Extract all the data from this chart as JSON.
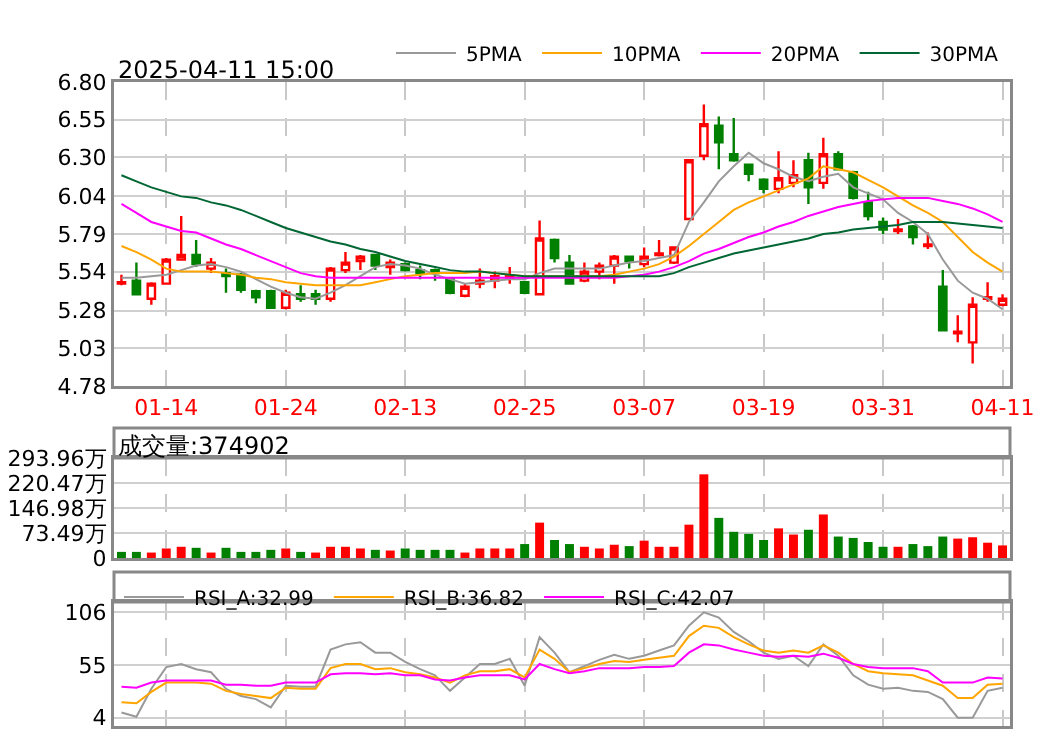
{
  "chart_data": [
    {
      "type": "candlestick",
      "title": "2025-04-11 15:00",
      "categories": [
        null,
        null,
        null,
        "01-14",
        null,
        null,
        null,
        null,
        null,
        null,
        null,
        "01-24",
        null,
        null,
        null,
        null,
        null,
        null,
        null,
        "02-13",
        null,
        null,
        null,
        null,
        null,
        null,
        null,
        "02-25",
        null,
        null,
        null,
        null,
        null,
        null,
        null,
        "03-07",
        null,
        null,
        null,
        null,
        null,
        null,
        null,
        "03-19",
        null,
        null,
        null,
        null,
        null,
        null,
        null,
        "03-31",
        null,
        null,
        null,
        null,
        null,
        null,
        null,
        "04-11"
      ],
      "ohlc": [
        [
          5.46,
          5.52,
          5.45,
          5.47
        ],
        [
          5.48,
          5.6,
          5.39,
          5.39
        ],
        [
          5.36,
          5.47,
          5.32,
          5.46
        ],
        [
          5.46,
          5.63,
          5.46,
          5.62
        ],
        [
          5.62,
          5.91,
          5.62,
          5.65
        ],
        [
          5.65,
          5.75,
          5.57,
          5.59
        ],
        [
          5.56,
          5.63,
          5.53,
          5.6
        ],
        [
          5.53,
          5.56,
          5.4,
          5.51
        ],
        [
          5.52,
          5.53,
          5.4,
          5.42
        ],
        [
          5.41,
          5.42,
          5.33,
          5.37
        ],
        [
          5.41,
          5.42,
          5.3,
          5.3
        ],
        [
          5.3,
          5.42,
          5.29,
          5.4
        ],
        [
          5.39,
          5.45,
          5.34,
          5.36
        ],
        [
          5.39,
          5.42,
          5.32,
          5.36
        ],
        [
          5.36,
          5.57,
          5.34,
          5.56
        ],
        [
          5.55,
          5.67,
          5.53,
          5.6
        ],
        [
          5.61,
          5.65,
          5.55,
          5.64
        ],
        [
          5.65,
          5.65,
          5.55,
          5.58
        ],
        [
          5.57,
          5.62,
          5.52,
          5.6
        ],
        [
          5.59,
          5.6,
          5.54,
          5.55
        ],
        [
          5.55,
          5.58,
          5.49,
          5.53
        ],
        [
          5.55,
          5.56,
          5.48,
          5.53
        ],
        [
          5.49,
          5.5,
          5.39,
          5.4
        ],
        [
          5.38,
          5.46,
          5.37,
          5.44
        ],
        [
          5.46,
          5.56,
          5.43,
          5.48
        ],
        [
          5.48,
          5.54,
          5.43,
          5.51
        ],
        [
          5.5,
          5.57,
          5.46,
          5.51
        ],
        [
          5.47,
          5.48,
          5.39,
          5.4
        ],
        [
          5.39,
          5.88,
          5.39,
          5.76
        ],
        [
          5.75,
          5.76,
          5.6,
          5.63
        ],
        [
          5.6,
          5.65,
          5.46,
          5.46
        ],
        [
          5.48,
          5.6,
          5.47,
          5.54
        ],
        [
          5.54,
          5.6,
          5.49,
          5.58
        ],
        [
          5.58,
          5.65,
          5.46,
          5.64
        ],
        [
          5.64,
          5.64,
          5.56,
          5.61
        ],
        [
          5.59,
          5.7,
          5.57,
          5.64
        ],
        [
          5.65,
          5.75,
          5.64,
          5.66
        ],
        [
          5.6,
          5.7,
          5.59,
          5.7
        ],
        [
          5.89,
          6.28,
          5.89,
          6.28
        ],
        [
          6.31,
          6.65,
          6.28,
          6.52
        ],
        [
          6.51,
          6.57,
          6.22,
          6.4
        ],
        [
          6.32,
          6.56,
          6.27,
          6.28
        ],
        [
          6.25,
          6.25,
          6.14,
          6.19
        ],
        [
          6.15,
          6.16,
          6.06,
          6.09
        ],
        [
          6.09,
          6.34,
          6.06,
          6.16
        ],
        [
          6.13,
          6.28,
          6.1,
          6.18
        ],
        [
          6.28,
          6.33,
          5.99,
          6.1
        ],
        [
          6.13,
          6.43,
          6.09,
          6.32
        ],
        [
          6.32,
          6.34,
          6.22,
          6.22
        ],
        [
          6.2,
          6.21,
          6.02,
          6.03
        ],
        [
          6.0,
          6.07,
          5.88,
          5.91
        ],
        [
          5.87,
          5.9,
          5.79,
          5.82
        ],
        [
          5.81,
          5.89,
          5.79,
          5.82
        ],
        [
          5.84,
          5.85,
          5.72,
          5.77
        ],
        [
          5.71,
          5.8,
          5.69,
          5.72
        ],
        [
          5.44,
          5.55,
          5.15,
          5.15
        ],
        [
          5.13,
          5.25,
          5.07,
          5.14
        ],
        [
          5.07,
          5.37,
          4.93,
          5.32
        ],
        [
          5.36,
          5.47,
          5.34,
          5.37
        ],
        [
          5.32,
          5.39,
          5.31,
          5.36
        ]
      ],
      "series": [
        {
          "name": "5PMA",
          "type": "line",
          "color": "#999999",
          "values": [
            5.5,
            5.5,
            5.51,
            5.52,
            5.55,
            5.58,
            5.59,
            5.57,
            5.54,
            5.49,
            5.44,
            5.4,
            5.37,
            5.36,
            5.4,
            5.45,
            5.51,
            5.57,
            5.59,
            5.58,
            5.56,
            5.52,
            5.49,
            5.46,
            5.47,
            5.48,
            5.49,
            5.49,
            5.53,
            5.56,
            5.56,
            5.56,
            5.56,
            5.58,
            5.6,
            5.61,
            5.63,
            5.65,
            5.87,
            6.0,
            6.14,
            6.24,
            6.33,
            6.26,
            6.22,
            6.17,
            6.14,
            6.17,
            6.19,
            6.1,
            6.06,
            6.02,
            5.93,
            5.87,
            5.79,
            5.62,
            5.48,
            5.4,
            5.36,
            5.29
          ]
        },
        {
          "name": "10PMA",
          "type": "line",
          "color": "#ffa500",
          "values": [
            5.71,
            5.67,
            5.62,
            5.56,
            5.54,
            5.54,
            5.54,
            5.53,
            5.52,
            5.5,
            5.49,
            5.47,
            5.46,
            5.45,
            5.45,
            5.45,
            5.45,
            5.47,
            5.49,
            5.51,
            5.52,
            5.53,
            5.53,
            5.53,
            5.54,
            5.53,
            5.52,
            5.51,
            5.51,
            5.51,
            5.51,
            5.51,
            5.51,
            5.52,
            5.54,
            5.56,
            5.59,
            5.64,
            5.71,
            5.79,
            5.87,
            5.95,
            6.0,
            6.04,
            6.08,
            6.12,
            6.16,
            6.24,
            6.22,
            6.2,
            6.15,
            6.1,
            6.04,
            5.98,
            5.93,
            5.87,
            5.77,
            5.67,
            5.6,
            5.54
          ]
        },
        {
          "name": "20PMA",
          "type": "line",
          "color": "#ff00ff",
          "values": [
            5.99,
            5.93,
            5.87,
            5.84,
            5.81,
            5.8,
            5.76,
            5.72,
            5.69,
            5.65,
            5.61,
            5.57,
            5.53,
            5.51,
            5.5,
            5.5,
            5.5,
            5.5,
            5.5,
            5.5,
            5.5,
            5.5,
            5.5,
            5.5,
            5.5,
            5.5,
            5.5,
            5.5,
            5.5,
            5.5,
            5.5,
            5.5,
            5.5,
            5.5,
            5.51,
            5.52,
            5.54,
            5.57,
            5.61,
            5.66,
            5.69,
            5.73,
            5.77,
            5.8,
            5.84,
            5.87,
            5.91,
            5.94,
            5.97,
            5.99,
            6.01,
            6.02,
            6.03,
            6.03,
            6.03,
            6.01,
            5.99,
            5.96,
            5.92,
            5.87
          ]
        },
        {
          "name": "30PMA",
          "type": "line",
          "color": "#006633",
          "values": [
            6.18,
            6.14,
            6.1,
            6.07,
            6.04,
            6.03,
            6.0,
            5.98,
            5.95,
            5.91,
            5.87,
            5.83,
            5.8,
            5.77,
            5.74,
            5.72,
            5.69,
            5.67,
            5.64,
            5.61,
            5.59,
            5.57,
            5.55,
            5.54,
            5.54,
            5.53,
            5.52,
            5.51,
            5.51,
            5.51,
            5.51,
            5.51,
            5.51,
            5.51,
            5.51,
            5.51,
            5.51,
            5.53,
            5.57,
            5.6,
            5.63,
            5.66,
            5.68,
            5.7,
            5.72,
            5.74,
            5.76,
            5.79,
            5.8,
            5.82,
            5.83,
            5.84,
            5.85,
            5.87,
            5.87,
            5.87,
            5.86,
            5.85,
            5.84,
            5.83
          ]
        }
      ],
      "ylim": [
        4.78,
        6.8
      ],
      "yticks": [
        {
          "value": 4.78,
          "label": "4.78"
        },
        {
          "value": 5.03,
          "label": "5.03"
        },
        {
          "value": 5.28,
          "label": "5.28"
        },
        {
          "value": 5.54,
          "label": "5.54"
        },
        {
          "value": 5.79,
          "label": "5.79"
        },
        {
          "value": 6.04,
          "label": "6.04"
        },
        {
          "value": 6.3,
          "label": "6.30"
        },
        {
          "value": 6.55,
          "label": "6.55"
        },
        {
          "value": 6.8,
          "label": "6.80"
        }
      ],
      "grid": true,
      "legend": "top right"
    },
    {
      "type": "bar",
      "title": "成交量:374902",
      "categories": [
        null,
        null,
        null,
        null,
        null,
        null,
        null,
        null,
        null,
        null,
        null,
        null,
        null,
        null,
        null,
        null,
        null,
        null,
        null,
        null,
        null,
        null,
        null,
        null,
        null,
        null,
        null,
        null,
        null,
        null,
        null,
        null,
        null,
        null,
        null,
        null,
        null,
        null,
        null,
        null,
        null,
        null,
        null,
        null,
        null,
        null,
        null,
        null,
        null,
        null,
        null,
        null,
        null,
        null,
        null,
        null,
        null,
        null,
        null,
        null
      ],
      "values": [
        18,
        18,
        16,
        28,
        33,
        30,
        16,
        30,
        18,
        18,
        24,
        28,
        18,
        16,
        33,
        33,
        28,
        24,
        22,
        28,
        24,
        24,
        24,
        16,
        28,
        28,
        28,
        41,
        104,
        53,
        41,
        33,
        28,
        39,
        35,
        51,
        33,
        33,
        98,
        246,
        118,
        77,
        71,
        53,
        87,
        69,
        83,
        128,
        63,
        59,
        47,
        33,
        33,
        41,
        35,
        63,
        57,
        61,
        45,
        37
      ],
      "colors": [
        "#008000",
        "#008000",
        "#ff0000",
        "#ff0000",
        "#ff0000",
        "#008000",
        "#ff0000",
        "#008000",
        "#008000",
        "#008000",
        "#008000",
        "#ff0000",
        "#008000",
        "#ff0000",
        "#ff0000",
        "#ff0000",
        "#ff0000",
        "#008000",
        "#ff0000",
        "#008000",
        "#008000",
        "#008000",
        "#008000",
        "#ff0000",
        "#ff0000",
        "#ff0000",
        "#ff0000",
        "#008000",
        "#ff0000",
        "#008000",
        "#008000",
        "#ff0000",
        "#ff0000",
        "#ff0000",
        "#008000",
        "#ff0000",
        "#ff0000",
        "#ff0000",
        "#ff0000",
        "#ff0000",
        "#008000",
        "#008000",
        "#008000",
        "#008000",
        "#ff0000",
        "#ff0000",
        "#008000",
        "#ff0000",
        "#008000",
        "#008000",
        "#008000",
        "#008000",
        "#ff0000",
        "#008000",
        "#008000",
        "#008000",
        "#ff0000",
        "#ff0000",
        "#ff0000",
        "#ff0000"
      ],
      "ylim": [
        0,
        293.96
      ],
      "yticks": [
        0,
        {
          "value": 73.49,
          "label": "73.49万"
        },
        {
          "value": 146.98,
          "label": "146.98万"
        },
        {
          "value": 220.47,
          "label": "220.47万"
        },
        {
          "value": 293.96,
          "label": "293.96万"
        }
      ],
      "grid": true,
      "tick_labels": "y"
    },
    {
      "type": "line",
      "categories": [
        null,
        null,
        null,
        null,
        null,
        null,
        null,
        null,
        null,
        null,
        null,
        null,
        null,
        null,
        null,
        null,
        null,
        null,
        null,
        null,
        null,
        null,
        null,
        null,
        null,
        null,
        null,
        null,
        null,
        null,
        null,
        null,
        null,
        null,
        null,
        null,
        null,
        null,
        null,
        null,
        null,
        null,
        null,
        null,
        null,
        null,
        null,
        null,
        null,
        null,
        null,
        null,
        null,
        null,
        null,
        null,
        null,
        null,
        null,
        null
      ],
      "series": [
        {
          "name": "RSI_A:32.99",
          "color": "#999999",
          "values": [
            9,
            5,
            32,
            53,
            56,
            51,
            48,
            32,
            25,
            22,
            14,
            35,
            34,
            34,
            70,
            75,
            77,
            67,
            67,
            58,
            51,
            45,
            30,
            43,
            56,
            56,
            61,
            35,
            82,
            67,
            48,
            54,
            60,
            65,
            61,
            64,
            69,
            74,
            93,
            106,
            101,
            87,
            78,
            67,
            61,
            64,
            54,
            75,
            64,
            45,
            36,
            32,
            33,
            30,
            29,
            22,
            4,
            4,
            30,
            33
          ]
        },
        {
          "name": "RSI_B:36.82",
          "color": "#ffa500",
          "values": [
            19,
            18,
            29,
            38,
            38,
            38,
            37,
            30,
            27,
            25,
            23,
            33,
            32,
            32,
            52,
            56,
            56,
            51,
            52,
            48,
            46,
            43,
            38,
            45,
            49,
            49,
            51,
            43,
            70,
            61,
            48,
            52,
            56,
            59,
            58,
            60,
            62,
            64,
            83,
            93,
            91,
            82,
            75,
            69,
            67,
            69,
            67,
            74,
            67,
            56,
            49,
            47,
            46,
            45,
            40,
            35,
            23,
            23,
            36,
            37
          ]
        },
        {
          "name": "RSI_C:42.07",
          "color": "#ff00ff",
          "values": [
            34,
            33,
            38,
            40,
            40,
            40,
            40,
            36,
            36,
            35,
            35,
            38,
            38,
            38,
            46,
            47,
            47,
            46,
            47,
            45,
            45,
            41,
            40,
            43,
            45,
            45,
            45,
            41,
            56,
            51,
            47,
            49,
            52,
            52,
            52,
            53,
            53,
            54,
            67,
            75,
            74,
            70,
            67,
            64,
            63,
            64,
            63,
            66,
            62,
            56,
            53,
            52,
            52,
            52,
            49,
            38,
            38,
            38,
            43,
            42
          ]
        }
      ],
      "ylim": [
        -4,
        116
      ],
      "yticks": [
        4,
        55,
        106
      ],
      "grid": true,
      "legend": "top left",
      "tick_labels": "y"
    }
  ]
}
